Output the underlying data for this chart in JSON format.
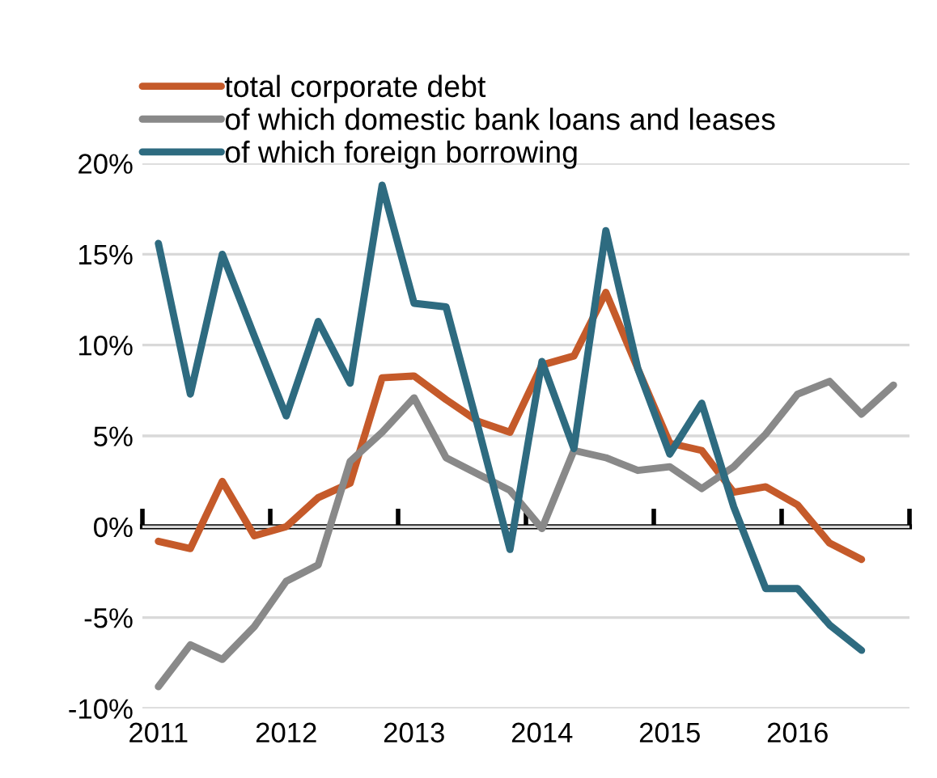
{
  "chart_data": {
    "type": "line",
    "categories": [
      "2011",
      null,
      null,
      null,
      "2012",
      null,
      null,
      null,
      "2013",
      null,
      null,
      null,
      "2014",
      null,
      null,
      null,
      "2015",
      null,
      null,
      null,
      "2016",
      null,
      null,
      null
    ],
    "series": [
      {
        "name": "total corporate debt",
        "color": "#c55a2a",
        "values": [
          -0.8,
          -1.2,
          2.5,
          -0.5,
          0.0,
          1.6,
          2.4,
          8.2,
          8.3,
          7.0,
          5.8,
          5.2,
          8.9,
          9.4,
          12.9,
          8.7,
          4.6,
          4.2,
          1.9,
          2.2,
          1.2,
          -0.9,
          -1.8,
          null
        ]
      },
      {
        "name": "of which domestic bank loans and leases",
        "color": "#898989",
        "values": [
          -8.8,
          -6.5,
          -7.3,
          -5.5,
          -3.0,
          -2.1,
          3.6,
          5.2,
          7.1,
          3.8,
          2.9,
          2.0,
          -0.1,
          4.2,
          3.8,
          3.1,
          3.3,
          2.1,
          3.3,
          5.1,
          7.3,
          8.0,
          6.2,
          7.8
        ]
      },
      {
        "name": "of which foreign borrowing",
        "color": "#2e6b80",
        "values": [
          15.6,
          7.3,
          15.0,
          10.5,
          6.1,
          11.3,
          7.9,
          18.8,
          12.3,
          12.1,
          5.5,
          -1.25,
          9.1,
          4.3,
          16.3,
          8.7,
          4.0,
          6.8,
          1.1,
          -3.4,
          -3.4,
          -5.4,
          -6.8,
          null
        ]
      }
    ],
    "ylim": [
      -10,
      20
    ],
    "yticks": [
      {
        "value": -10,
        "label": "-10%"
      },
      {
        "value": -5,
        "label": "-5%"
      },
      {
        "value": 0,
        "label": "0%"
      },
      {
        "value": 5,
        "label": "5%"
      },
      {
        "value": 10,
        "label": "10%"
      },
      {
        "value": 15,
        "label": "15%"
      },
      {
        "value": 20,
        "label": "20%"
      }
    ],
    "grid": "y",
    "legend": "top",
    "marker": "none",
    "line_style": "solid"
  }
}
